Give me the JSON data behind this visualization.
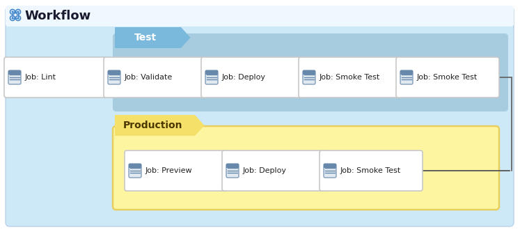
{
  "title": "Workflow",
  "bg_white": "#ffffff",
  "bg_main": "#cde8f7",
  "title_color": "#1a1a2e",
  "test_label_bg": "#7ab8dc",
  "test_label_text": "Test",
  "prod_label_bg": "#f5e06a",
  "prod_label_text": "Production",
  "test_group_bg": "#a8ccdf",
  "prod_group_bg": "#fdf5a0",
  "prod_group_border": "#e8d060",
  "job_box_bg": "#ffffff",
  "job_box_border": "#c8c8c8",
  "arrow_color": "#555555",
  "connector_color": "#666666",
  "jobs_row1": [
    "Job: Lint",
    "Job: Validate",
    "Job: Deploy",
    "Job: Smoke Test"
  ],
  "jobs_row2": [
    "Job: Preview",
    "Job: Deploy",
    "Job: Smoke Test"
  ],
  "label_text_color_test": "#ffffff",
  "label_text_color_prod": "#4a3800",
  "icon_bg": "#e0e8f0",
  "icon_line": "#6688aa",
  "outer_border": "#b8d0e8"
}
